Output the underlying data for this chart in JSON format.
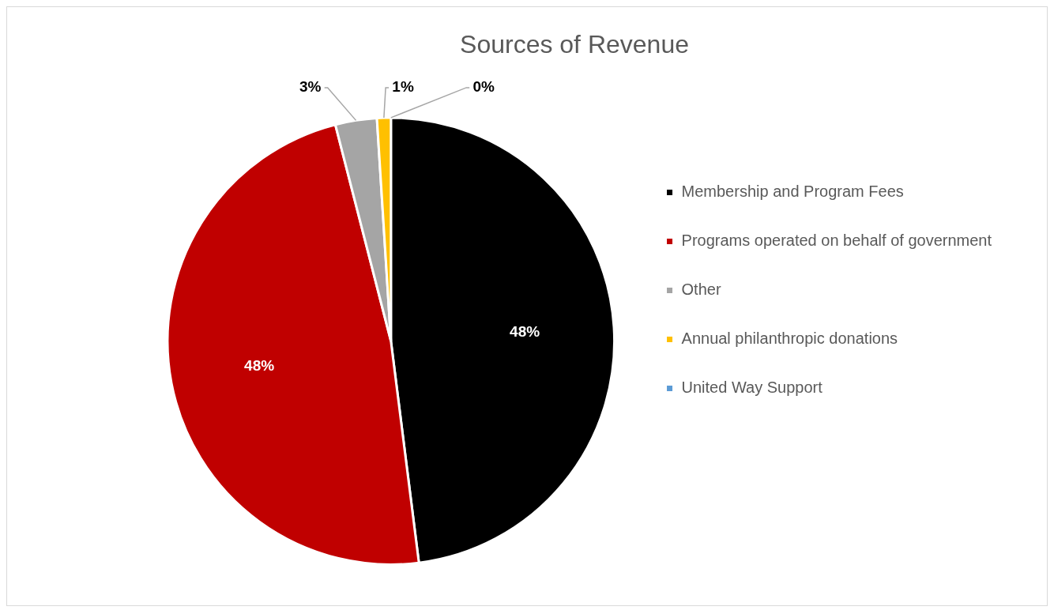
{
  "chart_data": {
    "type": "pie",
    "title": "Sources of Revenue",
    "categories": [
      "Membership and Program Fees",
      "Programs operated on behalf of government",
      "Other",
      "Annual philanthropic donations",
      "United Way Support"
    ],
    "values": [
      48,
      48,
      3,
      1,
      0
    ],
    "colors": [
      "#000000",
      "#c00000",
      "#a5a5a5",
      "#ffc000",
      "#5b9bd5"
    ],
    "value_labels": [
      "48%",
      "48%",
      "3%",
      "1%",
      "0%"
    ],
    "legend": "right"
  }
}
